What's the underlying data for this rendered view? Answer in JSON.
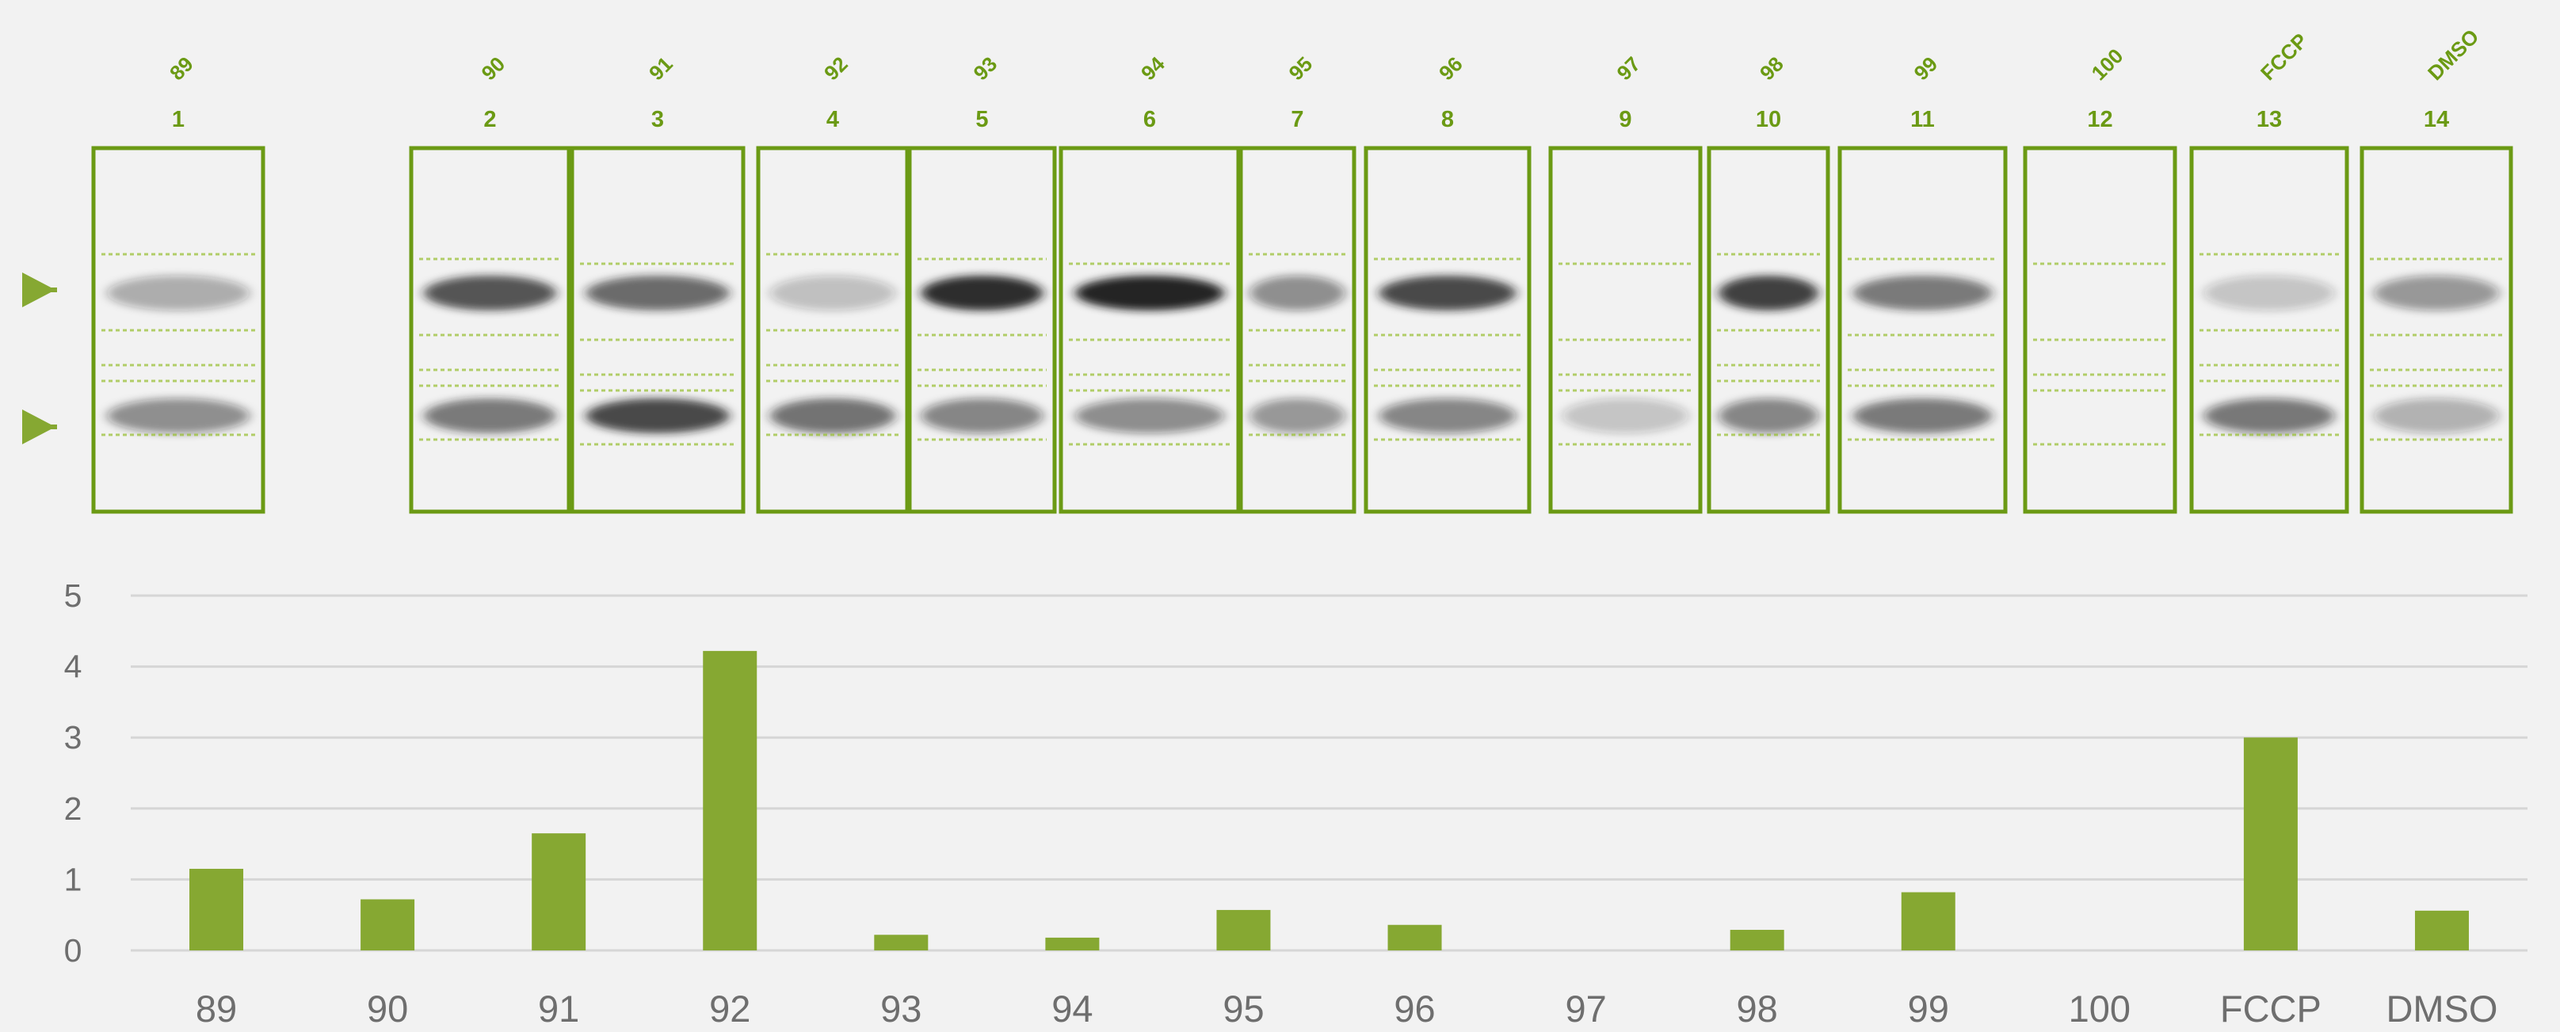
{
  "colors": {
    "accent": "#86a832",
    "frame": "#6b9a14",
    "grid": "#d6d6d6",
    "tick": "#6e6e6e",
    "band": "#1a1a1a"
  },
  "blot": {
    "lanes": [
      {
        "label": "89",
        "number": "1",
        "band_upper": 0.25,
        "band_lower": 0.4
      },
      {
        "label": "90",
        "number": "2",
        "band_upper": 0.75,
        "band_lower": 0.55
      },
      {
        "label": "91",
        "number": "3",
        "band_upper": 0.62,
        "band_lower": 0.8
      },
      {
        "label": "92",
        "number": "4",
        "band_upper": 0.15,
        "band_lower": 0.58
      },
      {
        "label": "93",
        "number": "5",
        "band_upper": 0.95,
        "band_lower": 0.45
      },
      {
        "label": "94",
        "number": "6",
        "band_upper": 1.0,
        "band_lower": 0.42
      },
      {
        "label": "95",
        "number": "7",
        "band_upper": 0.4,
        "band_lower": 0.35
      },
      {
        "label": "96",
        "number": "8",
        "band_upper": 0.8,
        "band_lower": 0.45
      },
      {
        "label": "97",
        "number": "9",
        "band_upper": 0.0,
        "band_lower": 0.12
      },
      {
        "label": "98",
        "number": "10",
        "band_upper": 0.85,
        "band_lower": 0.45
      },
      {
        "label": "99",
        "number": "11",
        "band_upper": 0.55,
        "band_lower": 0.55
      },
      {
        "label": "100",
        "number": "12",
        "band_upper": 0.0,
        "band_lower": 0.0
      },
      {
        "label": "FCCP",
        "number": "13",
        "band_upper": 0.12,
        "band_lower": 0.52
      },
      {
        "label": "DMSO",
        "number": "14",
        "band_upper": 0.35,
        "band_lower": 0.22
      }
    ],
    "band_markers": 2
  },
  "chart_data": {
    "type": "bar",
    "categories": [
      "89",
      "90",
      "91",
      "92",
      "93",
      "94",
      "95",
      "96",
      "97",
      "98",
      "99",
      "100",
      "FCCP",
      "DMSO"
    ],
    "values": [
      1.15,
      0.72,
      1.65,
      4.22,
      0.22,
      0.18,
      0.57,
      0.36,
      0,
      0.29,
      0.82,
      0,
      3.0,
      0.56
    ],
    "ylim": [
      0,
      5
    ],
    "yticks": [
      "0",
      "1",
      "2",
      "3",
      "4",
      "5"
    ],
    "grid": true,
    "legend": "none",
    "title": "",
    "xlabel": "",
    "ylabel": ""
  }
}
